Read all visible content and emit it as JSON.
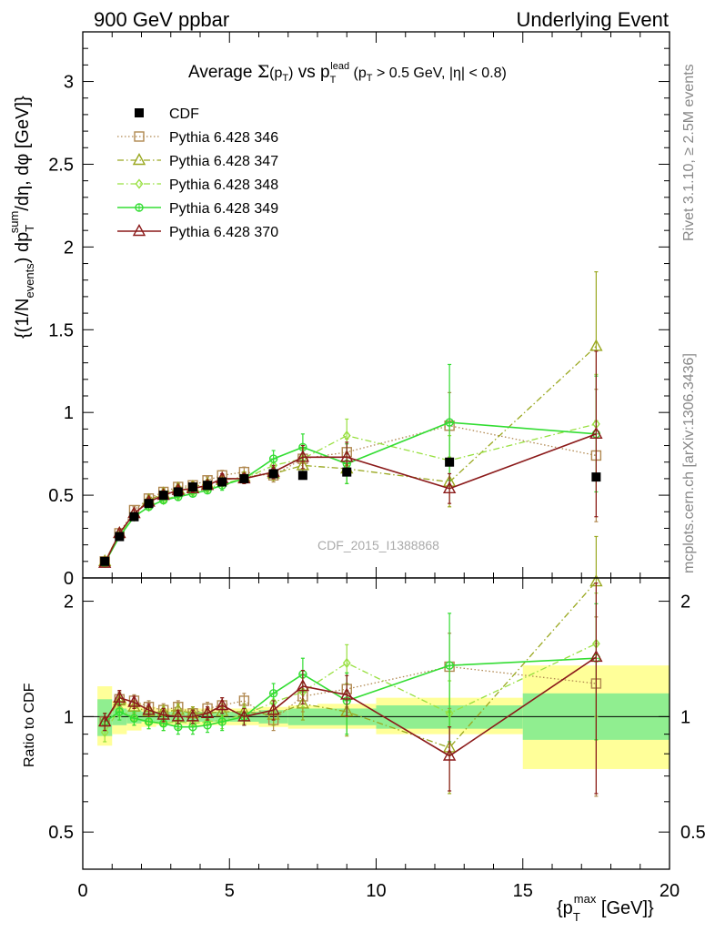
{
  "header": {
    "left": "900 GeV ppbar",
    "right": "Underlying Event"
  },
  "title": {
    "prefix": "Average ",
    "sigma": "Σ",
    "pt_open": "(p",
    "pt_sub": "T",
    "pt_close": ")",
    "vs": " vs p",
    "lead_sub": "T",
    "lead_sup": "lead",
    "cut_open": " (p",
    "cut_sub": "T",
    "cut_text": " > 0.5 GeV, |η| < 0.8)"
  },
  "ylabel_top": {
    "a": "{(1/N",
    "a_sub": "events",
    "b": ") dp",
    "b_sub": "T",
    "b_sup": "sum",
    "c": "/dη, dφ [GeV]}"
  },
  "ylabel_bottom": "Ratio to CDF",
  "xlabel": {
    "a": "{p",
    "a_sub": "T",
    "a_sup": "max",
    "b": " [GeV]}"
  },
  "side_labels": {
    "rivet": "Rivet 3.1.10, ≥ 2.5M events",
    "mcplots": "mcplots.cern.ch [arXiv:1306.3436]"
  },
  "watermark": "CDF_2015_I1388868",
  "colors": {
    "band_inner": "#90EE90",
    "band_outer": "#FFFF99"
  },
  "chart_data": {
    "type": "line",
    "xlim": [
      0,
      20
    ],
    "ylim_top": [
      0,
      3.3
    ],
    "ylim_bottom": [
      0.4,
      2.3
    ],
    "xticks": [
      0,
      5,
      10,
      15,
      20
    ],
    "yticks_top": [
      0,
      0.5,
      1,
      1.5,
      2,
      2.5,
      3
    ],
    "yticks_bottom": [
      0.5,
      1,
      2
    ],
    "ytick_labels_top": [
      "0",
      "0.5",
      "1",
      "1.5",
      "2",
      "2.5",
      "3"
    ],
    "ytick_labels_bottom": [
      "0.5",
      "1",
      "2"
    ],
    "ref_bins": [
      [
        0.5,
        1
      ],
      [
        1,
        1.5
      ],
      [
        1.5,
        2
      ],
      [
        2,
        2.5
      ],
      [
        2.5,
        3
      ],
      [
        3,
        3.5
      ],
      [
        3.5,
        4
      ],
      [
        4,
        4.5
      ],
      [
        4.5,
        5
      ],
      [
        5,
        6
      ],
      [
        6,
        7
      ],
      [
        7,
        8
      ],
      [
        8,
        10
      ],
      [
        10,
        15
      ],
      [
        15,
        20
      ]
    ],
    "band_inner": [
      [
        0.89,
        1.11
      ],
      [
        0.95,
        1.05
      ],
      [
        0.96,
        1.04
      ],
      [
        0.97,
        1.03
      ],
      [
        0.97,
        1.03
      ],
      [
        0.97,
        1.03
      ],
      [
        0.97,
        1.03
      ],
      [
        0.97,
        1.03
      ],
      [
        0.97,
        1.03
      ],
      [
        0.97,
        1.03
      ],
      [
        0.96,
        1.04
      ],
      [
        0.95,
        1.05
      ],
      [
        0.95,
        1.05
      ],
      [
        0.93,
        1.07
      ],
      [
        0.87,
        1.15
      ]
    ],
    "band_outer": [
      [
        0.84,
        1.2
      ],
      [
        0.9,
        1.1
      ],
      [
        0.92,
        1.08
      ],
      [
        0.94,
        1.06
      ],
      [
        0.95,
        1.05
      ],
      [
        0.95,
        1.05
      ],
      [
        0.95,
        1.05
      ],
      [
        0.95,
        1.05
      ],
      [
        0.95,
        1.05
      ],
      [
        0.95,
        1.05
      ],
      [
        0.94,
        1.06
      ],
      [
        0.93,
        1.07
      ],
      [
        0.93,
        1.08
      ],
      [
        0.9,
        1.12
      ],
      [
        0.73,
        1.36
      ]
    ],
    "series": [
      {
        "name": "CDF",
        "color": "#000000",
        "marker": "filled-square",
        "line": "none",
        "x": [
          0.75,
          1.25,
          1.75,
          2.25,
          2.75,
          3.25,
          3.75,
          4.25,
          4.75,
          5.5,
          6.5,
          7.5,
          9.0,
          12.5,
          17.5
        ],
        "y": [
          0.1,
          0.25,
          0.37,
          0.45,
          0.5,
          0.52,
          0.55,
          0.56,
          0.58,
          0.6,
          0.63,
          0.62,
          0.64,
          0.7,
          0.61
        ],
        "err": [
          0.01,
          0.01,
          0.01,
          0.01,
          0.01,
          0.01,
          0.01,
          0.01,
          0.01,
          0.01,
          0.01,
          0.01,
          0.01,
          0.02,
          0.02
        ],
        "ratio": [
          1,
          1,
          1,
          1,
          1,
          1,
          1,
          1,
          1,
          1,
          1,
          1,
          1,
          1,
          1
        ]
      },
      {
        "name": "Pythia 6.428 346",
        "color": "#B08850",
        "marker": "open-square",
        "line": "dotted",
        "x": [
          0.75,
          1.25,
          1.75,
          2.25,
          2.75,
          3.25,
          3.75,
          4.25,
          4.75,
          5.5,
          6.5,
          7.5,
          9.0,
          12.5,
          17.5
        ],
        "y": [
          0.1,
          0.27,
          0.41,
          0.48,
          0.52,
          0.55,
          0.56,
          0.59,
          0.62,
          0.64,
          0.62,
          0.72,
          0.76,
          0.92,
          0.74
        ],
        "err": [
          0.01,
          0.02,
          0.02,
          0.02,
          0.02,
          0.02,
          0.02,
          0.02,
          0.03,
          0.03,
          0.04,
          0.06,
          0.08,
          0.2,
          0.4
        ],
        "ratio": [
          0.97,
          1.11,
          1.1,
          1.06,
          1.04,
          1.06,
          1.02,
          1.05,
          1.07,
          1.1,
          0.98,
          1.13,
          1.18,
          1.35,
          1.22
        ],
        "ratio_err": [
          0.05,
          0.05,
          0.04,
          0.04,
          0.04,
          0.04,
          0.04,
          0.04,
          0.05,
          0.05,
          0.06,
          0.1,
          0.12,
          0.3,
          0.6
        ]
      },
      {
        "name": "Pythia 6.428 347",
        "color": "#9AA820",
        "marker": "open-triangle",
        "line": "dashdot",
        "x": [
          0.75,
          1.25,
          1.75,
          2.25,
          2.75,
          3.25,
          3.75,
          4.25,
          4.75,
          5.5,
          6.5,
          7.5,
          9.0,
          12.5,
          17.5
        ],
        "y": [
          0.1,
          0.27,
          0.39,
          0.47,
          0.51,
          0.54,
          0.55,
          0.57,
          0.59,
          0.61,
          0.63,
          0.68,
          0.66,
          0.58,
          1.4
        ],
        "err": [
          0.01,
          0.02,
          0.02,
          0.02,
          0.02,
          0.02,
          0.02,
          0.02,
          0.03,
          0.03,
          0.04,
          0.07,
          0.09,
          0.15,
          0.45
        ],
        "ratio": [
          0.97,
          1.1,
          1.06,
          1.03,
          1.03,
          1.04,
          1.02,
          1.02,
          1.03,
          1.03,
          1.01,
          1.08,
          1.03,
          0.83,
          2.25
        ],
        "ratio_err": [
          0.05,
          0.05,
          0.04,
          0.04,
          0.04,
          0.04,
          0.04,
          0.04,
          0.05,
          0.05,
          0.06,
          0.1,
          0.14,
          0.2,
          0.7
        ]
      },
      {
        "name": "Pythia 6.428 348",
        "color": "#98E040",
        "marker": "open-diamond",
        "line": "dashdot",
        "x": [
          0.75,
          1.25,
          1.75,
          2.25,
          2.75,
          3.25,
          3.75,
          4.25,
          4.75,
          5.5,
          6.5,
          7.5,
          9.0,
          12.5,
          17.5
        ],
        "y": [
          0.09,
          0.26,
          0.37,
          0.43,
          0.47,
          0.5,
          0.52,
          0.54,
          0.57,
          0.6,
          0.68,
          0.72,
          0.86,
          0.71,
          0.93
        ],
        "err": [
          0.01,
          0.02,
          0.02,
          0.02,
          0.02,
          0.02,
          0.02,
          0.02,
          0.03,
          0.03,
          0.04,
          0.06,
          0.1,
          0.15,
          0.3
        ],
        "ratio": [
          0.91,
          1.05,
          0.99,
          0.97,
          0.96,
          0.97,
          0.96,
          0.97,
          0.98,
          1.01,
          1.09,
          1.16,
          1.38,
          1.02,
          1.55
        ],
        "ratio_err": [
          0.05,
          0.05,
          0.04,
          0.04,
          0.04,
          0.04,
          0.04,
          0.04,
          0.05,
          0.05,
          0.06,
          0.1,
          0.16,
          0.22,
          0.55
        ]
      },
      {
        "name": "Pythia 6.428 349",
        "color": "#33DD33",
        "marker": "open-circle-plus",
        "line": "solid",
        "x": [
          0.75,
          1.25,
          1.75,
          2.25,
          2.75,
          3.25,
          3.75,
          4.25,
          4.75,
          5.5,
          6.5,
          7.5,
          9.0,
          12.5,
          17.5
        ],
        "y": [
          0.09,
          0.25,
          0.37,
          0.43,
          0.47,
          0.49,
          0.51,
          0.53,
          0.56,
          0.6,
          0.72,
          0.79,
          0.69,
          0.94,
          0.87
        ],
        "err": [
          0.01,
          0.02,
          0.02,
          0.02,
          0.02,
          0.02,
          0.02,
          0.02,
          0.03,
          0.03,
          0.05,
          0.08,
          0.12,
          0.35,
          0.35
        ],
        "ratio": [
          0.97,
          1.03,
          0.99,
          0.97,
          0.96,
          0.94,
          0.94,
          0.95,
          0.97,
          1.0,
          1.15,
          1.29,
          1.1,
          1.36,
          1.42
        ],
        "ratio_err": [
          0.05,
          0.05,
          0.04,
          0.04,
          0.04,
          0.04,
          0.04,
          0.04,
          0.05,
          0.05,
          0.07,
          0.13,
          0.2,
          0.5,
          0.55
        ]
      },
      {
        "name": "Pythia 6.428 370",
        "color": "#8B1A1A",
        "marker": "open-triangle",
        "line": "solid",
        "x": [
          0.75,
          1.25,
          1.75,
          2.25,
          2.75,
          3.25,
          3.75,
          4.25,
          4.75,
          5.5,
          6.5,
          7.5,
          9.0,
          12.5,
          17.5
        ],
        "y": [
          0.09,
          0.27,
          0.39,
          0.46,
          0.5,
          0.53,
          0.54,
          0.56,
          0.6,
          0.6,
          0.64,
          0.73,
          0.73,
          0.54,
          0.87
        ],
        "err": [
          0.01,
          0.02,
          0.02,
          0.02,
          0.02,
          0.02,
          0.02,
          0.02,
          0.03,
          0.03,
          0.04,
          0.07,
          0.09,
          0.09,
          0.5
        ],
        "ratio": [
          0.97,
          1.12,
          1.09,
          1.04,
          1.01,
          1.0,
          1.0,
          1.02,
          1.07,
          1.0,
          1.04,
          1.2,
          1.14,
          0.79,
          1.43
        ],
        "ratio_err": [
          0.05,
          0.05,
          0.04,
          0.04,
          0.04,
          0.04,
          0.04,
          0.04,
          0.05,
          0.05,
          0.06,
          0.12,
          0.14,
          0.15,
          0.8
        ]
      }
    ]
  }
}
